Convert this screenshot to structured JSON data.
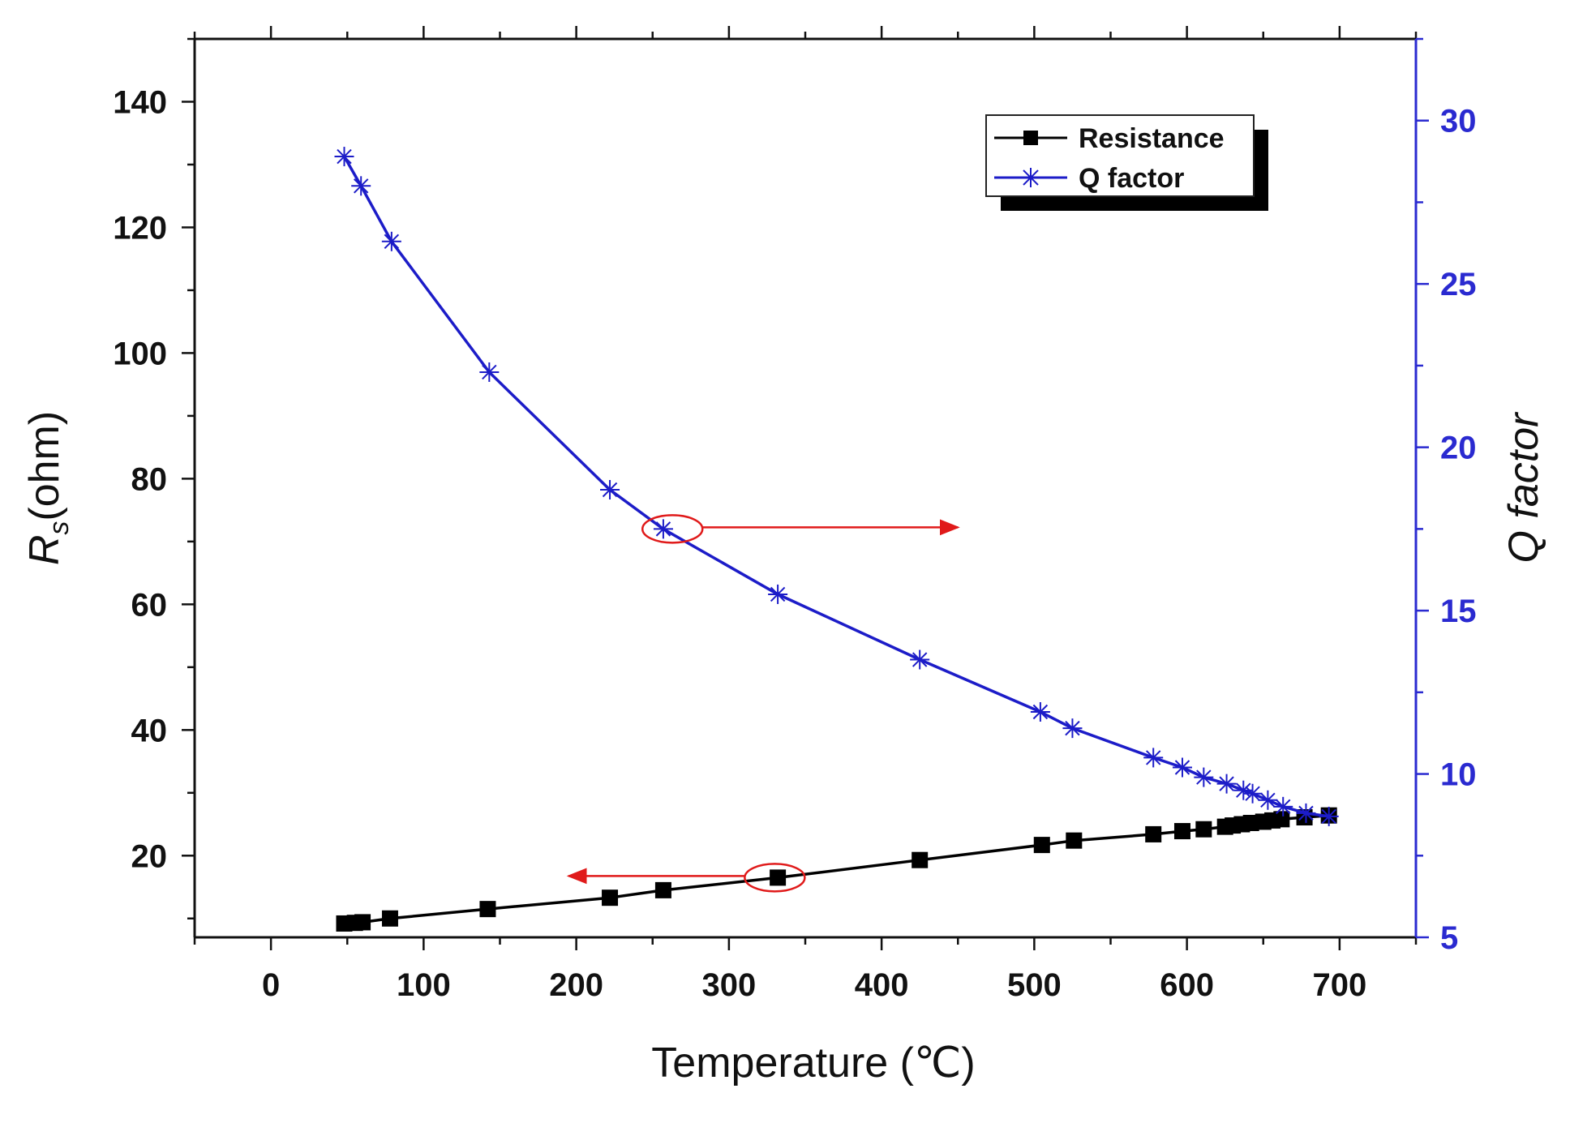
{
  "chart_data": {
    "type": "line",
    "title": "",
    "xlabel": "Temperature (℃)",
    "ylabel_left": {
      "main": "R",
      "sub": "s",
      "unit": "(ohm)"
    },
    "ylabel_right": "Q factor",
    "xlim": [
      -50,
      750
    ],
    "ylim_left": [
      7,
      150
    ],
    "ylim_right": [
      5,
      32.5
    ],
    "x_ticks": [
      0,
      100,
      200,
      300,
      400,
      500,
      600,
      700
    ],
    "y_left_ticks": [
      20,
      40,
      60,
      80,
      100,
      120,
      140
    ],
    "y_right_ticks": [
      5,
      10,
      15,
      20,
      25,
      30
    ],
    "grid": false,
    "legend_position": "top-right",
    "colors": {
      "resistance": "#000000",
      "qfactor": "#1c1cc8",
      "annotation": "#e01a1a",
      "right_axis": "#2a2ad0"
    },
    "series": [
      {
        "name": "Resistance",
        "axis": "left",
        "marker": "square",
        "x": [
          48,
          55,
          60,
          78,
          142,
          222,
          257,
          332,
          425,
          505,
          526,
          578,
          597,
          611,
          625,
          630,
          636,
          642,
          650,
          656,
          662,
          677,
          693
        ],
        "y": [
          9.2,
          9.3,
          9.4,
          10.0,
          11.5,
          13.3,
          14.5,
          16.5,
          19.3,
          21.7,
          22.4,
          23.4,
          23.9,
          24.2,
          24.6,
          24.8,
          25.0,
          25.2,
          25.4,
          25.6,
          25.8,
          26.1,
          26.4
        ]
      },
      {
        "name": "Q factor",
        "axis": "right",
        "marker": "asterisk",
        "x": [
          48,
          59,
          79,
          143,
          222,
          257,
          332,
          425,
          504,
          525,
          578,
          597,
          611,
          626,
          637,
          643,
          653,
          663,
          678,
          693
        ],
        "y": [
          28.9,
          28.0,
          26.3,
          22.3,
          18.7,
          17.5,
          15.5,
          13.5,
          11.9,
          11.4,
          10.5,
          10.2,
          9.9,
          9.7,
          9.5,
          9.4,
          9.2,
          9.0,
          8.8,
          8.7
        ]
      }
    ],
    "annotations": [
      {
        "target": "Q factor",
        "point": [
          263,
          17.5
        ],
        "arrow_to_x": 450,
        "direction": "right"
      },
      {
        "target": "Resistance",
        "point": [
          330,
          16.5
        ],
        "arrow_to_x": 195,
        "direction": "left"
      }
    ]
  }
}
